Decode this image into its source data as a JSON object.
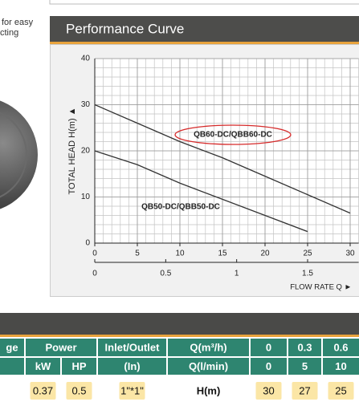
{
  "side_text": [
    "for easy",
    "cting"
  ],
  "chart_data": {
    "type": "line",
    "title": "Performance Curve",
    "ylabel": "TOTAL HEAD H(m) ▲",
    "xlabel": "FLOW RATE Q ►",
    "x": [
      0,
      5,
      10,
      15,
      20,
      25,
      30
    ],
    "series": [
      {
        "name": "QB60-DC/QBB60-DC",
        "color": "#333333",
        "values": [
          30,
          26,
          22,
          18.5,
          14.5,
          10.5,
          6.5
        ]
      },
      {
        "name": "QB50-DC/QBB50-DC",
        "color": "#333333",
        "values": [
          20,
          17,
          13,
          9.5,
          6,
          2.5,
          null
        ]
      }
    ],
    "xlim": [
      0,
      31
    ],
    "xticks": [
      0,
      5,
      10,
      15,
      20,
      25,
      30
    ],
    "x2lim": [
      0,
      1.86
    ],
    "x2ticks": [
      0,
      0.5,
      1,
      1.5
    ],
    "ylim": [
      0,
      40
    ],
    "yticks": [
      0,
      10,
      20,
      30,
      40
    ],
    "grid": true
  },
  "table": {
    "rows": [
      {
        "cells": [
          "ge",
          "Power",
          "Inlet/Outlet",
          "Q(m³/h)",
          "0",
          "0.3",
          "0.6"
        ]
      },
      {
        "cells": [
          "kW",
          "HP",
          "(In)",
          "Q(l/min)",
          "0",
          "5",
          "10"
        ]
      },
      {
        "cells": [
          "0.37",
          "0.5",
          "1\"*1\"",
          "H(m)",
          "30",
          "27",
          "25"
        ]
      }
    ]
  }
}
